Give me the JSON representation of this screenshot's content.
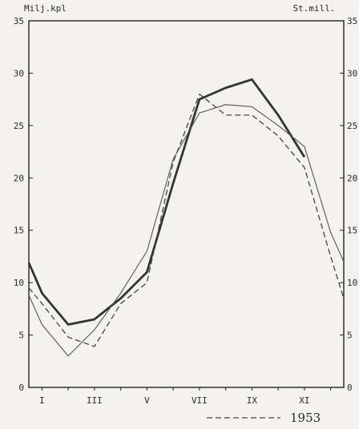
{
  "chart_data": {
    "type": "line",
    "left_axis_label": "Milj.kpl",
    "right_axis_label": "St.mill.",
    "x_tick_labels": [
      "I",
      "III",
      "V",
      "VII",
      "IX",
      "XI"
    ],
    "months": [
      1,
      2,
      3,
      4,
      5,
      6,
      7,
      8,
      9,
      10,
      11,
      12
    ],
    "left_ticks": [
      0,
      5,
      10,
      15,
      20,
      25,
      30,
      35
    ],
    "right_ticks": [
      0,
      5,
      10,
      15,
      20,
      25,
      30,
      35
    ],
    "ylim": [
      0,
      35
    ],
    "grid": false,
    "series": [
      {
        "style": "thick-solid",
        "values": [
          11.9,
          9.0,
          6.0,
          6.5,
          8.5,
          11.0,
          19.5,
          27.5,
          28.6,
          29.4,
          26.0,
          22.0
        ],
        "x": [
          1,
          1.5,
          2.5,
          3.5,
          4.5,
          5.5,
          6.5,
          7.5,
          8.5,
          9.5,
          10.5,
          11.5
        ]
      },
      {
        "style": "thin-solid",
        "values": [
          8.8,
          6.0,
          3.0,
          5.5,
          9.0,
          13.0,
          21.8,
          26.2,
          27.0,
          26.8,
          25.0,
          23.0,
          14.8,
          12.0
        ],
        "x": [
          1,
          1.5,
          2.5,
          3.5,
          4.5,
          5.5,
          6.5,
          7.5,
          8.5,
          9.5,
          10.5,
          11.5,
          12.5,
          13.0
        ]
      },
      {
        "name": "1953",
        "style": "dashed",
        "values": [
          9.5,
          8.0,
          4.8,
          3.9,
          8.0,
          10.0,
          21.5,
          28.0,
          26.0,
          26.0,
          24.0,
          21.0,
          12.5,
          8.5
        ],
        "x": [
          1,
          1.5,
          2.5,
          3.5,
          4.5,
          5.5,
          6.5,
          7.5,
          8.5,
          9.5,
          10.5,
          11.5,
          12.5,
          13.0
        ]
      }
    ]
  }
}
